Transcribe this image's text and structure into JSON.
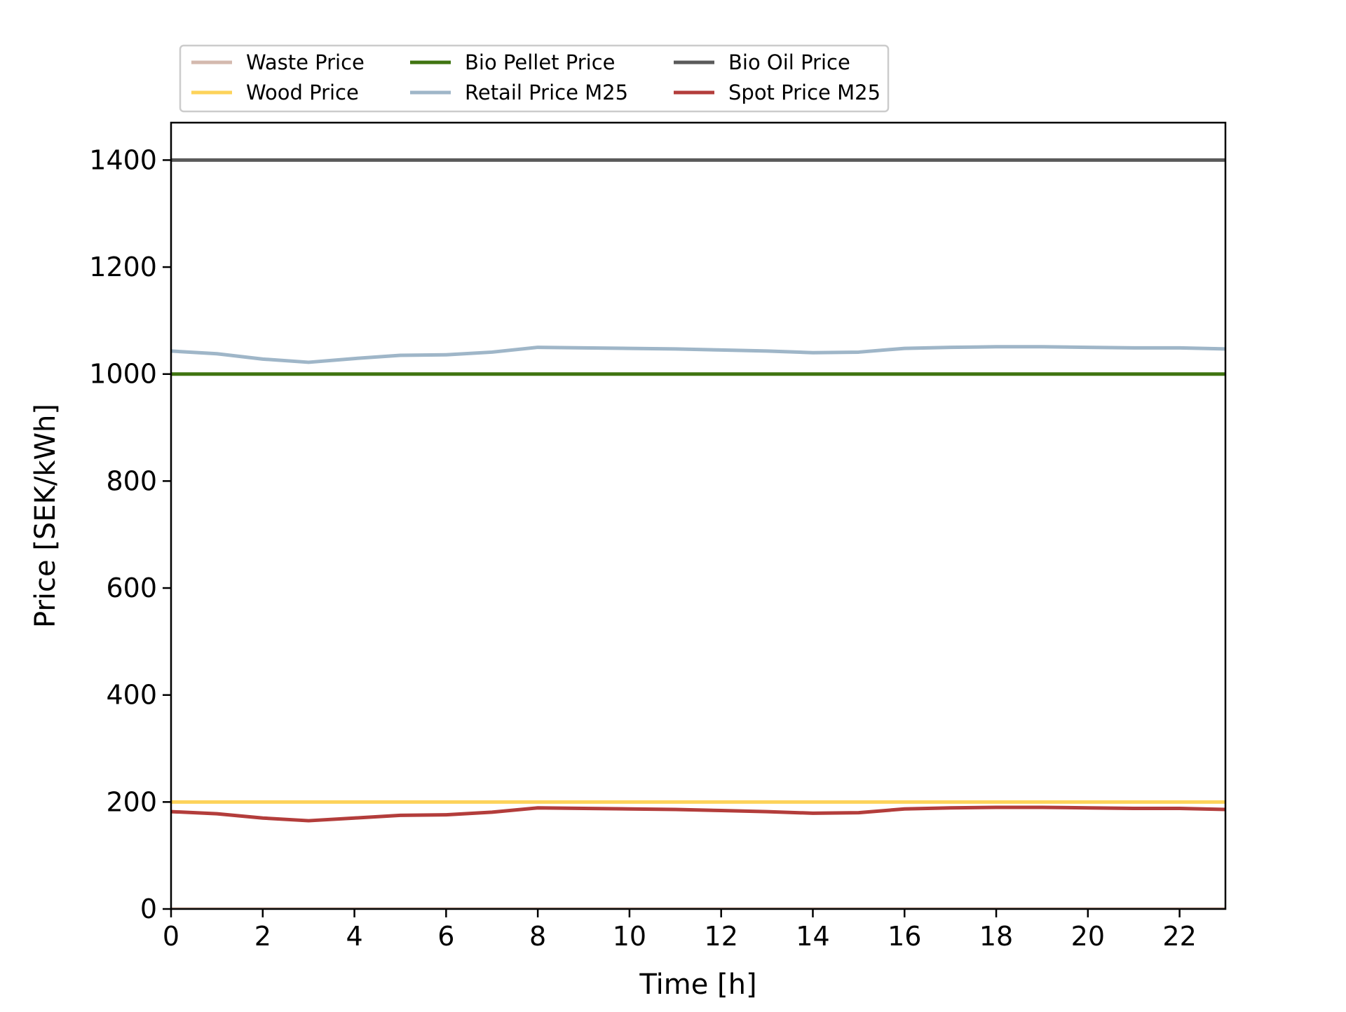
{
  "chart_data": {
    "type": "line",
    "title": "",
    "xlabel": "Time [h]",
    "ylabel": "Price [SEK/kWh]",
    "xlim": [
      0,
      23
    ],
    "ylim": [
      0,
      1470
    ],
    "xticks": [
      0,
      2,
      4,
      6,
      8,
      10,
      12,
      14,
      16,
      18,
      20,
      22
    ],
    "yticks": [
      0,
      200,
      400,
      600,
      800,
      1000,
      1200,
      1400
    ],
    "grid": false,
    "legend_position": "top-left above plot",
    "x": [
      0,
      1,
      2,
      3,
      4,
      5,
      6,
      7,
      8,
      9,
      10,
      11,
      12,
      13,
      14,
      15,
      16,
      17,
      18,
      19,
      20,
      21,
      22,
      23
    ],
    "series": [
      {
        "name": "Waste Price",
        "color": "#d4b9ae",
        "values": [
          0,
          0,
          0,
          0,
          0,
          0,
          0,
          0,
          0,
          0,
          0,
          0,
          0,
          0,
          0,
          0,
          0,
          0,
          0,
          0,
          0,
          0,
          0,
          0
        ]
      },
      {
        "name": "Wood Price",
        "color": "#fdd35a",
        "values": [
          200,
          200,
          200,
          200,
          200,
          200,
          200,
          200,
          200,
          200,
          200,
          200,
          200,
          200,
          200,
          200,
          200,
          200,
          200,
          200,
          200,
          200,
          200,
          200
        ]
      },
      {
        "name": "Bio Pellet Price",
        "color": "#3f7410",
        "values": [
          1000,
          1000,
          1000,
          1000,
          1000,
          1000,
          1000,
          1000,
          1000,
          1000,
          1000,
          1000,
          1000,
          1000,
          1000,
          1000,
          1000,
          1000,
          1000,
          1000,
          1000,
          1000,
          1000,
          1000
        ]
      },
      {
        "name": "Retail Price M25",
        "color": "#9fb6c8",
        "values": [
          1043,
          1038,
          1028,
          1022,
          1029,
          1035,
          1036,
          1041,
          1050,
          1049,
          1048,
          1047,
          1045,
          1043,
          1040,
          1041,
          1048,
          1050,
          1051,
          1051,
          1050,
          1049,
          1049,
          1047
        ]
      },
      {
        "name": "Bio Oil Price",
        "color": "#5a5a5a",
        "values": [
          1400,
          1400,
          1400,
          1400,
          1400,
          1400,
          1400,
          1400,
          1400,
          1400,
          1400,
          1400,
          1400,
          1400,
          1400,
          1400,
          1400,
          1400,
          1400,
          1400,
          1400,
          1400,
          1400,
          1400
        ]
      },
      {
        "name": "Spot Price M25",
        "color": "#b33d3b",
        "values": [
          182,
          178,
          170,
          165,
          170,
          175,
          176,
          181,
          189,
          188,
          187,
          186,
          184,
          182,
          179,
          180,
          187,
          189,
          190,
          190,
          189,
          188,
          188,
          186
        ]
      }
    ],
    "legend_order": [
      "Waste Price",
      "Wood Price",
      "Bio Pellet Price",
      "Retail Price M25",
      "Bio Oil Price",
      "Spot Price M25"
    ]
  }
}
